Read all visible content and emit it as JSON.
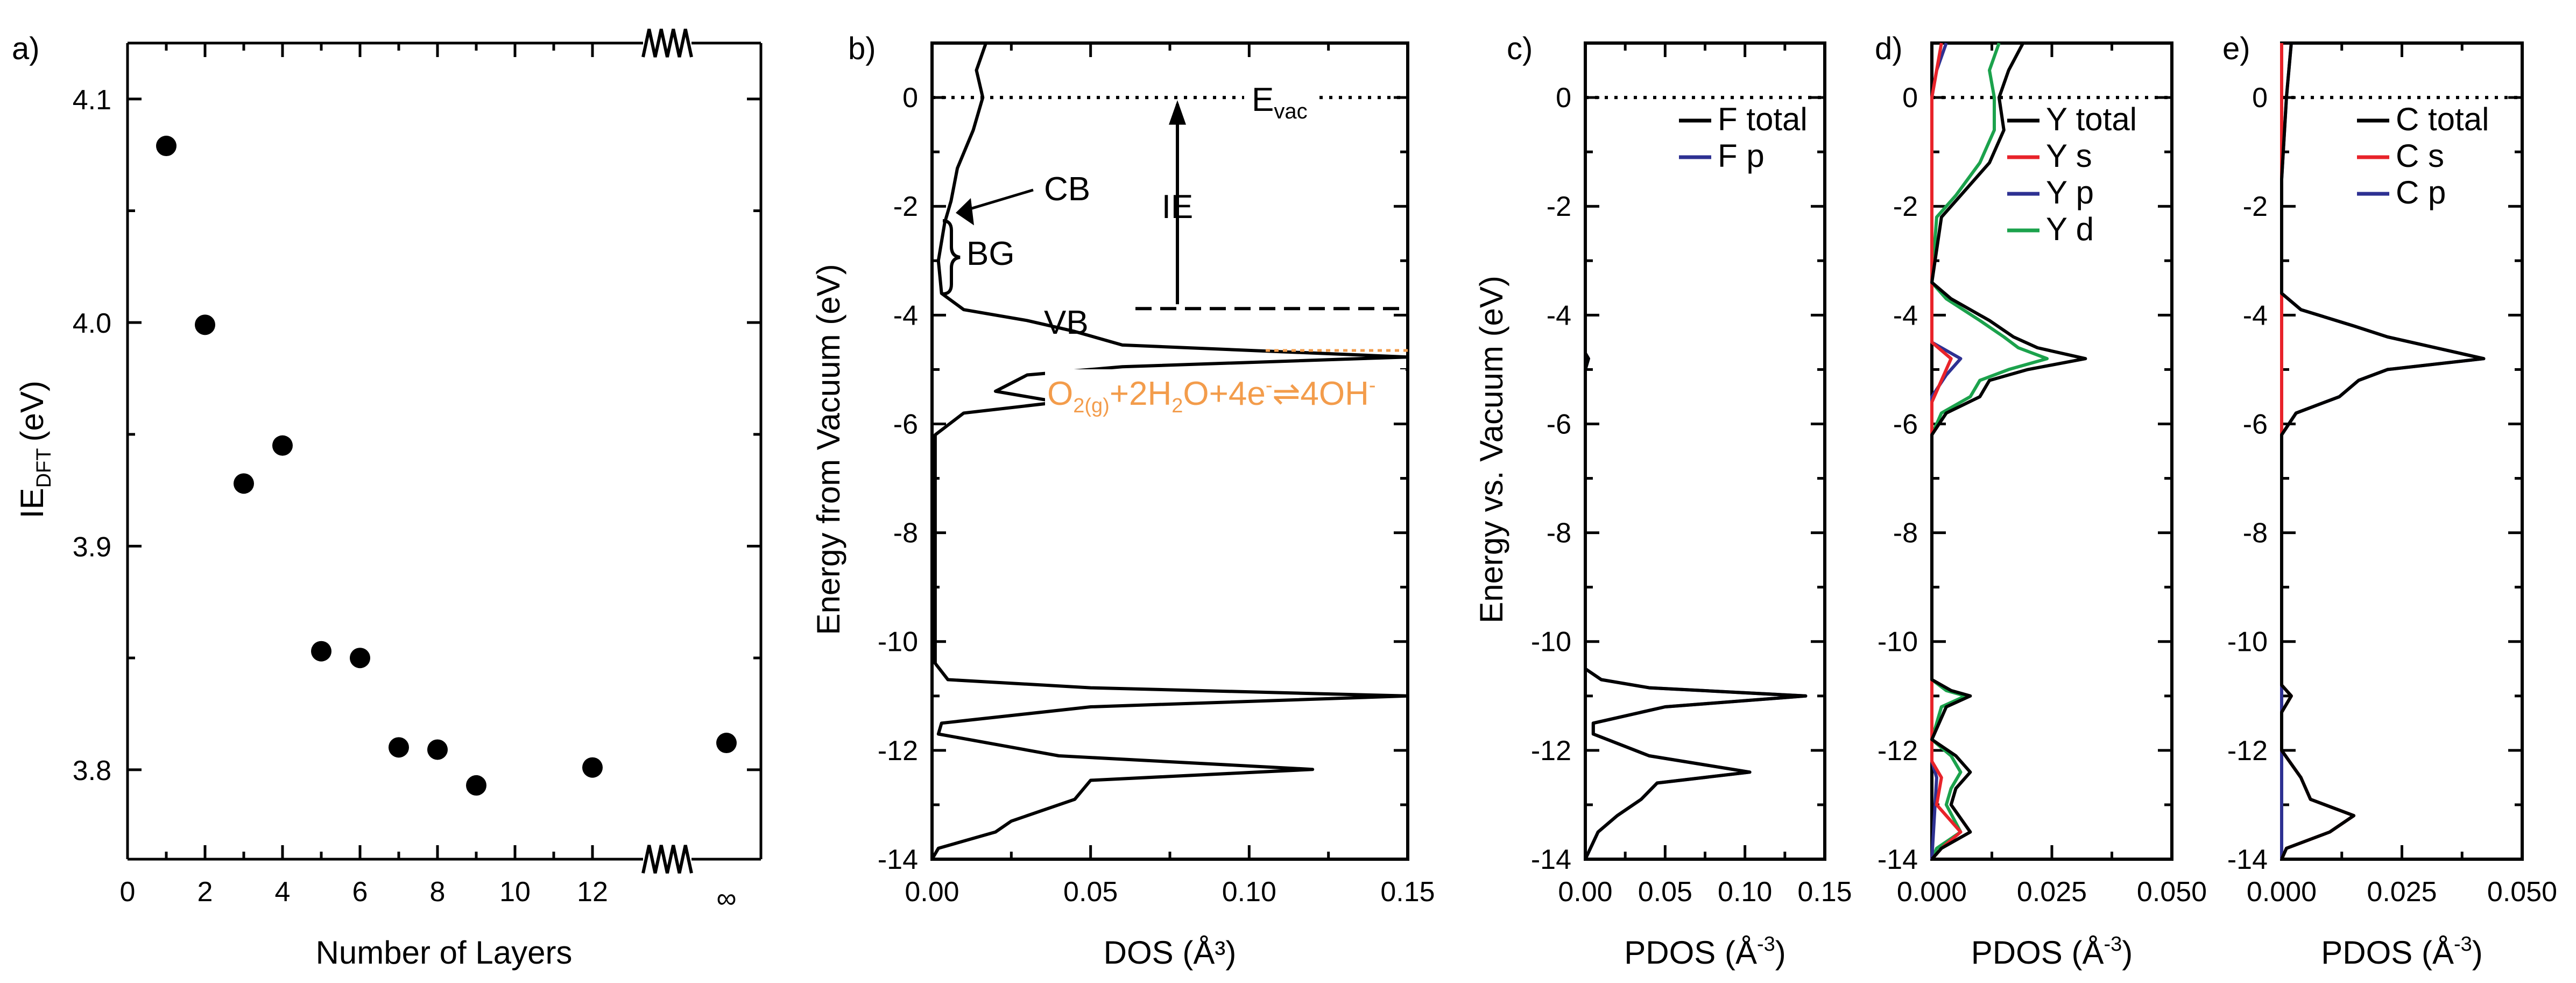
{
  "chart_data": [
    {
      "panel": "a)",
      "type": "scatter",
      "xlabel": "Number of Layers",
      "ylabel_main": "IE",
      "ylabel_sub": "DFT",
      "ylabel_unit": "(eV)",
      "xticks": [
        "0",
        "2",
        "4",
        "6",
        "8",
        "10",
        "12"
      ],
      "x_infinity_label": "∞",
      "yticks": [
        "3.8",
        "3.9",
        "4.0",
        "4.1"
      ],
      "ylim": [
        3.76,
        4.125
      ],
      "axis_break": "between 12 and ∞ on x-axis",
      "points": [
        {
          "x": "1",
          "y": 4.079
        },
        {
          "x": "2",
          "y": 3.999
        },
        {
          "x": "3",
          "y": 3.928
        },
        {
          "x": "4",
          "y": 3.945
        },
        {
          "x": "5",
          "y": 3.853
        },
        {
          "x": "6",
          "y": 3.85
        },
        {
          "x": "7",
          "y": 3.81
        },
        {
          "x": "8",
          "y": 3.809
        },
        {
          "x": "9",
          "y": 3.793
        },
        {
          "x": "12",
          "y": 3.801
        },
        {
          "x": "∞",
          "y": 3.812
        }
      ]
    },
    {
      "panel": "b)",
      "type": "line",
      "xlabel": "DOS (Å³)",
      "ylabel": "Energy from Vacuum (eV)",
      "xticks": [
        "0.00",
        "0.05",
        "0.10",
        "0.15"
      ],
      "xlim": [
        0,
        0.15
      ],
      "yticks": [
        "0",
        "-2",
        "-4",
        "-6",
        "-8",
        "-10",
        "-12",
        "-14"
      ],
      "ylim": [
        -14,
        1
      ],
      "curve": [
        [
          0.017,
          1.0
        ],
        [
          0.014,
          0.5
        ],
        [
          0.016,
          0.0
        ],
        [
          0.013,
          -0.6
        ],
        [
          0.008,
          -1.3
        ],
        [
          0.006,
          -1.9
        ],
        [
          0.004,
          -2.3
        ],
        [
          0.002,
          -3.0
        ],
        [
          0.003,
          -3.6
        ],
        [
          0.01,
          -3.9
        ],
        [
          0.03,
          -4.1
        ],
        [
          0.045,
          -4.3
        ],
        [
          0.06,
          -4.55
        ],
        [
          0.15,
          -4.77
        ],
        [
          0.06,
          -4.95
        ],
        [
          0.03,
          -5.1
        ],
        [
          0.02,
          -5.4
        ],
        [
          0.04,
          -5.6
        ],
        [
          0.01,
          -5.8
        ],
        [
          0.001,
          -6.2
        ],
        [
          0.001,
          -10.4
        ],
        [
          0.005,
          -10.7
        ],
        [
          0.05,
          -10.85
        ],
        [
          0.15,
          -11.0
        ],
        [
          0.05,
          -11.2
        ],
        [
          0.003,
          -11.5
        ],
        [
          0.002,
          -11.7
        ],
        [
          0.04,
          -12.1
        ],
        [
          0.12,
          -12.35
        ],
        [
          0.05,
          -12.55
        ],
        [
          0.045,
          -12.9
        ],
        [
          0.025,
          -13.3
        ],
        [
          0.02,
          -13.5
        ],
        [
          0.002,
          -13.8
        ],
        [
          0.0,
          -14.0
        ]
      ],
      "annotations": {
        "evac_main": "E",
        "evac_sub": "vac",
        "cb": "CB",
        "bg": "BG",
        "vb": "VB",
        "ie": "IE",
        "reaction_color": "#F39C4B",
        "reaction": [
          {
            "t": "O",
            "s": "n"
          },
          {
            "t": "2(g)",
            "s": "sub"
          },
          {
            "t": "+2H",
            "s": "n"
          },
          {
            "t": "2",
            "s": "sub"
          },
          {
            "t": "O+4e",
            "s": "n"
          },
          {
            "t": "-",
            "s": "sup"
          },
          {
            "t": "⇌4OH",
            "s": "n"
          },
          {
            "t": "-",
            "s": "sup"
          }
        ]
      },
      "reference_levels_eV": {
        "vacuum": 0,
        "ionization_energy": -3.88,
        "redox": -4.65
      }
    },
    {
      "panel": "c)",
      "type": "line",
      "xlabel_main": "PDOS (Å",
      "xlabel_sup": "-3",
      "xlabel_end": ")",
      "ylabel": "Energy vs. Vacuum (eV)",
      "xticks": [
        "0.00",
        "0.05",
        "0.10",
        "0.15"
      ],
      "xlim": [
        0,
        0.15
      ],
      "yticks": [
        "0",
        "-2",
        "-4",
        "-6",
        "-8",
        "-10",
        "-12",
        "-14"
      ],
      "ylim": [
        -14,
        1
      ],
      "series": [
        {
          "name": "F total",
          "color": "#000000",
          "points": [
            [
              0,
              1
            ],
            [
              0,
              -4.7
            ],
            [
              0.002,
              -4.8
            ],
            [
              0,
              -5.0
            ],
            [
              0,
              -10.5
            ],
            [
              0.01,
              -10.7
            ],
            [
              0.04,
              -10.85
            ],
            [
              0.138,
              -11.0
            ],
            [
              0.05,
              -11.2
            ],
            [
              0.005,
              -11.5
            ],
            [
              0.005,
              -11.7
            ],
            [
              0.04,
              -12.1
            ],
            [
              0.103,
              -12.4
            ],
            [
              0.045,
              -12.6
            ],
            [
              0.035,
              -12.9
            ],
            [
              0.02,
              -13.2
            ],
            [
              0.008,
              -13.5
            ],
            [
              0,
              -14
            ]
          ]
        },
        {
          "name": "F p",
          "color": "#2E3192",
          "points": [
            [
              0,
              1
            ],
            [
              0,
              -4.7
            ],
            [
              0.002,
              -4.8
            ],
            [
              0,
              -5.0
            ],
            [
              0,
              -10.5
            ],
            [
              0.01,
              -10.7
            ],
            [
              0.04,
              -10.85
            ],
            [
              0.138,
              -11.0
            ],
            [
              0.05,
              -11.2
            ],
            [
              0.005,
              -11.5
            ],
            [
              0.005,
              -11.7
            ],
            [
              0.04,
              -12.1
            ],
            [
              0.103,
              -12.4
            ],
            [
              0.045,
              -12.6
            ],
            [
              0.035,
              -12.9
            ],
            [
              0.02,
              -13.2
            ],
            [
              0.008,
              -13.5
            ],
            [
              0,
              -14
            ]
          ]
        }
      ]
    },
    {
      "panel": "d)",
      "type": "line",
      "xlabel_main": "PDOS (Å",
      "xlabel_sup": "-3",
      "xlabel_end": ")",
      "xticks": [
        "0.000",
        "0.025",
        "0.050"
      ],
      "xlim": [
        0,
        0.05
      ],
      "yticks": [
        "0",
        "-2",
        "-4",
        "-6",
        "-8",
        "-10",
        "-12",
        "-14"
      ],
      "ylim": [
        -14,
        1
      ],
      "series": [
        {
          "name": "Y total",
          "color": "#000000",
          "points": [
            [
              0.019,
              1
            ],
            [
              0.016,
              0.5
            ],
            [
              0.014,
              0
            ],
            [
              0.015,
              -0.6
            ],
            [
              0.012,
              -1.2
            ],
            [
              0.006,
              -1.8
            ],
            [
              0.002,
              -2.2
            ],
            [
              0,
              -3.4
            ],
            [
              0.004,
              -3.7
            ],
            [
              0.012,
              -4.1
            ],
            [
              0.017,
              -4.4
            ],
            [
              0.022,
              -4.6
            ],
            [
              0.032,
              -4.8
            ],
            [
              0.02,
              -5.0
            ],
            [
              0.012,
              -5.2
            ],
            [
              0.01,
              -5.5
            ],
            [
              0.003,
              -5.8
            ],
            [
              0,
              -6.2
            ],
            [
              0,
              -10.7
            ],
            [
              0.004,
              -10.9
            ],
            [
              0.008,
              -11.0
            ],
            [
              0.003,
              -11.2
            ],
            [
              0,
              -11.8
            ],
            [
              0.005,
              -12.1
            ],
            [
              0.008,
              -12.4
            ],
            [
              0.005,
              -12.7
            ],
            [
              0.004,
              -13.0
            ],
            [
              0.008,
              -13.5
            ],
            [
              0.002,
              -13.8
            ],
            [
              0,
              -14
            ]
          ]
        },
        {
          "name": "Y s",
          "color": "#E8232A",
          "points": [
            [
              0.002,
              1
            ],
            [
              0.001,
              0.5
            ],
            [
              0,
              0
            ],
            [
              0,
              -4.5
            ],
            [
              0.004,
              -4.8
            ],
            [
              0.002,
              -5.2
            ],
            [
              0,
              -5.6
            ],
            [
              0,
              -12.2
            ],
            [
              0.002,
              -12.5
            ],
            [
              0.001,
              -13.0
            ],
            [
              0.006,
              -13.5
            ],
            [
              0.002,
              -13.8
            ],
            [
              0,
              -14
            ]
          ]
        },
        {
          "name": "Y p",
          "color": "#2E3192",
          "points": [
            [
              0.003,
              1
            ],
            [
              0.001,
              0.5
            ],
            [
              0,
              0
            ],
            [
              0,
              -4.5
            ],
            [
              0.006,
              -4.8
            ],
            [
              0.003,
              -5.1
            ],
            [
              0,
              -5.5
            ],
            [
              0,
              -12.2
            ],
            [
              0.001,
              -12.5
            ],
            [
              0,
              -14
            ]
          ]
        },
        {
          "name": "Y d",
          "color": "#1BA24C",
          "points": [
            [
              0.014,
              1
            ],
            [
              0.012,
              0.5
            ],
            [
              0.013,
              0
            ],
            [
              0.013,
              -0.6
            ],
            [
              0.01,
              -1.2
            ],
            [
              0.005,
              -1.8
            ],
            [
              0.001,
              -2.2
            ],
            [
              0,
              -3.4
            ],
            [
              0.003,
              -3.7
            ],
            [
              0.01,
              -4.1
            ],
            [
              0.015,
              -4.4
            ],
            [
              0.018,
              -4.6
            ],
            [
              0.024,
              -4.8
            ],
            [
              0.016,
              -5.0
            ],
            [
              0.01,
              -5.2
            ],
            [
              0.008,
              -5.5
            ],
            [
              0.002,
              -5.8
            ],
            [
              0,
              -6.2
            ],
            [
              0,
              -10.7
            ],
            [
              0.003,
              -10.9
            ],
            [
              0.007,
              -11.0
            ],
            [
              0.002,
              -11.2
            ],
            [
              0,
              -11.8
            ],
            [
              0.004,
              -12.1
            ],
            [
              0.006,
              -12.4
            ],
            [
              0.004,
              -12.7
            ],
            [
              0.003,
              -13.0
            ],
            [
              0.006,
              -13.5
            ],
            [
              0.001,
              -13.8
            ],
            [
              0,
              -14
            ]
          ]
        }
      ]
    },
    {
      "panel": "e)",
      "type": "line",
      "xlabel_main": "PDOS (Å",
      "xlabel_sup": "-3",
      "xlabel_end": ")",
      "xticks": [
        "0.000",
        "0.025",
        "0.050"
      ],
      "xlim": [
        0,
        0.05
      ],
      "yticks": [
        "0",
        "-2",
        "-4",
        "-6",
        "-8",
        "-10",
        "-12",
        "-14"
      ],
      "ylim": [
        -14,
        1
      ],
      "series": [
        {
          "name": "C total",
          "color": "#000000",
          "points": [
            [
              0.002,
              1
            ],
            [
              0.001,
              0
            ],
            [
              0,
              -1.5
            ],
            [
              0,
              -3.6
            ],
            [
              0.004,
              -3.9
            ],
            [
              0.015,
              -4.2
            ],
            [
              0.022,
              -4.4
            ],
            [
              0.042,
              -4.8
            ],
            [
              0.022,
              -5.0
            ],
            [
              0.016,
              -5.2
            ],
            [
              0.012,
              -5.5
            ],
            [
              0.003,
              -5.8
            ],
            [
              0,
              -6.2
            ],
            [
              0,
              -10.8
            ],
            [
              0.002,
              -11.0
            ],
            [
              0,
              -11.3
            ],
            [
              0,
              -12.0
            ],
            [
              0.004,
              -12.5
            ],
            [
              0.006,
              -12.9
            ],
            [
              0.015,
              -13.2
            ],
            [
              0.01,
              -13.5
            ],
            [
              0.001,
              -13.8
            ],
            [
              0,
              -14
            ]
          ]
        },
        {
          "name": "C s",
          "color": "#E8232A",
          "points": [
            [
              0,
              1
            ],
            [
              0,
              -10.8
            ],
            [
              0.002,
              -11.0
            ],
            [
              0,
              -11.3
            ],
            [
              0,
              -12.0
            ],
            [
              0.004,
              -12.5
            ],
            [
              0.006,
              -12.9
            ],
            [
              0.015,
              -13.2
            ],
            [
              0.01,
              -13.5
            ],
            [
              0.001,
              -13.8
            ],
            [
              0,
              -14
            ]
          ]
        },
        {
          "name": "C p",
          "color": "#2E3192",
          "points": [
            [
              0.002,
              1
            ],
            [
              0.001,
              0
            ],
            [
              0,
              -1.5
            ],
            [
              0,
              -3.6
            ],
            [
              0.004,
              -3.9
            ],
            [
              0.015,
              -4.2
            ],
            [
              0.022,
              -4.4
            ],
            [
              0.042,
              -4.8
            ],
            [
              0.022,
              -5.0
            ],
            [
              0.016,
              -5.2
            ],
            [
              0.012,
              -5.5
            ],
            [
              0.003,
              -5.8
            ],
            [
              0,
              -6.2
            ],
            [
              0,
              -14
            ]
          ]
        }
      ]
    }
  ]
}
